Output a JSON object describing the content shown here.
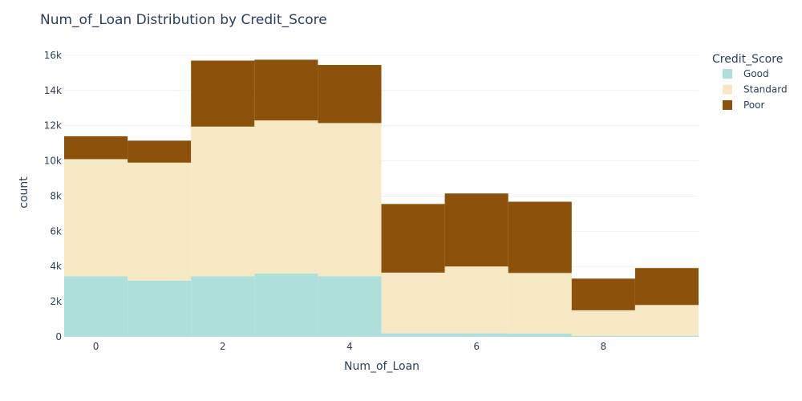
{
  "chart_data": {
    "type": "bar",
    "stacked": true,
    "title": "Num_of_Loan Distribution by Credit_Score",
    "xlabel": "Num_of_Loan",
    "ylabel": "count",
    "x": [
      0,
      1,
      2,
      3,
      4,
      5,
      6,
      7,
      8,
      9
    ],
    "x_ticks": [
      0,
      2,
      4,
      6,
      8
    ],
    "xlim": [
      -0.5,
      9.5
    ],
    "ylim": [
      0,
      16500
    ],
    "y_ticks": [
      0,
      2000,
      4000,
      6000,
      8000,
      10000,
      12000,
      14000,
      16000
    ],
    "y_tick_labels": [
      "0",
      "2k",
      "4k",
      "6k",
      "8k",
      "10k",
      "12k",
      "14k",
      "16k"
    ],
    "grid": true,
    "legend": {
      "title": "Credit_Score",
      "placement": "top-right"
    },
    "series": [
      {
        "name": "Good",
        "color": "#aedfda",
        "values": [
          3450,
          3200,
          3450,
          3600,
          3450,
          200,
          200,
          180,
          60,
          60
        ]
      },
      {
        "name": "Standard",
        "color": "#f6e8c3",
        "values": [
          6650,
          6700,
          8500,
          8700,
          8700,
          3450,
          3800,
          3450,
          1450,
          1750
        ]
      },
      {
        "name": "Poor",
        "color": "#8c510a",
        "values": [
          1300,
          1250,
          3750,
          3450,
          3300,
          3900,
          4150,
          4050,
          1800,
          2100
        ]
      }
    ]
  }
}
